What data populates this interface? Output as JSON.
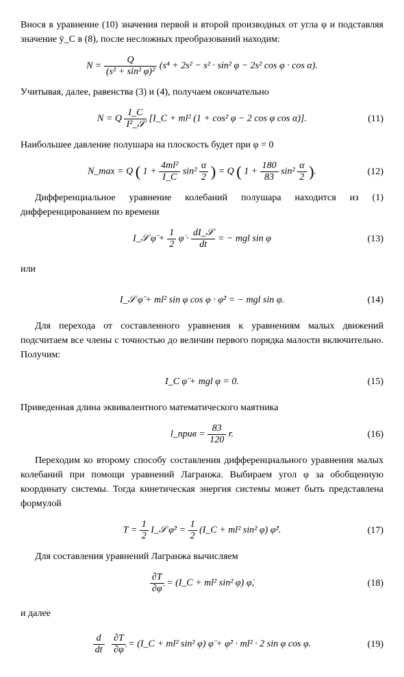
{
  "p1": "Внося в уравнение (10) значения первой и второй производных от угла φ и подставляя значение ÿ_C в (8), после несложных преобразований находим:",
  "eqA": {
    "lhs": "N =",
    "frac_num": "Q",
    "frac_den": "(s² + sin² φ)²",
    "rest": "(s⁴ + 2s² − s² · sin² φ − 2s² cos φ · cos α)."
  },
  "p2": "Учитывая, далее, равенства (3) и (4), получаем окончательно",
  "eq11": {
    "text_before": "N = Q ",
    "frac_num": "I_C",
    "frac_den": "I²_𝒮",
    "text_after": " [I_C + ml² (1 + cos² φ − 2 cos φ cos α)].",
    "num": "(11)"
  },
  "p3": "Наибольшее давление полушара на плоскость будет при φ = 0",
  "eq12": {
    "pre": "N_max = Q ",
    "par1a": "1 + ",
    "frac1_num": "4ml²",
    "frac1_den": "I_C",
    "par1b": " sin² ",
    "halfalpha": "α",
    "mid": " = Q ",
    "par2a": "1 + ",
    "frac2_num": "180",
    "frac2_den": "83",
    "par2b": " sin² ",
    "num": "(12)"
  },
  "p4": "Дифференциальное уравнение колебаний полушара находится из (1) дифференцированием по времени",
  "eq13": {
    "left": "I_𝒮 φ̈ + ",
    "half_num": "1",
    "half_den": "2",
    "mid": " φ̇ · ",
    "dfrac_num": "dI_𝒮",
    "dfrac_den": "dt",
    "right": " = − mgl sin φ",
    "num": "(13)"
  },
  "p5": "или",
  "eq14": {
    "text": "I_𝒮 φ̈ + ml² sin φ cos φ · φ̇² = − mgl sin φ.",
    "num": "(14)"
  },
  "p6": "Для перехода от составленного уравнения к уравнениям малых движений подсчитаем все члены с точностью до величин первого порядка малости включительно. Получим:",
  "eq15": {
    "text": "I_C φ̈ + mgl φ = 0.",
    "num": "(15)"
  },
  "p7": "Приведенная длина эквивалентного математического маятника",
  "eq16": {
    "lhs": "l_прив = ",
    "frac_num": "83",
    "frac_den": "120",
    "rhs": " r.",
    "num": "(16)"
  },
  "p8": "Переходим ко второму способу составления дифференциального уравнения малых колебаний при помощи уравнений Лагранжа. Выбираем угол φ за обобщенную координату системы. Тогда кинетическая энергия системы может быть представлена формулой",
  "eq17": {
    "lhs": "T = ",
    "half_num": "1",
    "half_den": "2",
    "mid": " I_𝒮 φ̇² = ",
    "half2_num": "1",
    "half2_den": "2",
    "rhs": " (I_C + ml² sin² φ) φ̇².",
    "num": "(17)"
  },
  "p9": "Для составления уравнений Лагранжа вычисляем",
  "eq18": {
    "frac_num": "∂T",
    "frac_den": "∂φ̇",
    "rhs": " = (I_C + ml² sin² φ) φ̇,",
    "num": "(18)"
  },
  "p10": "и далее",
  "eq19": {
    "f1_num": "d",
    "f1_den": "dt",
    "f2_num": "∂T",
    "f2_den": "∂φ̇",
    "rhs": " = (I_C + ml² sin² φ) φ̈ + φ̇² · ml² · 2 sin φ cos φ.",
    "num": "(19)"
  }
}
